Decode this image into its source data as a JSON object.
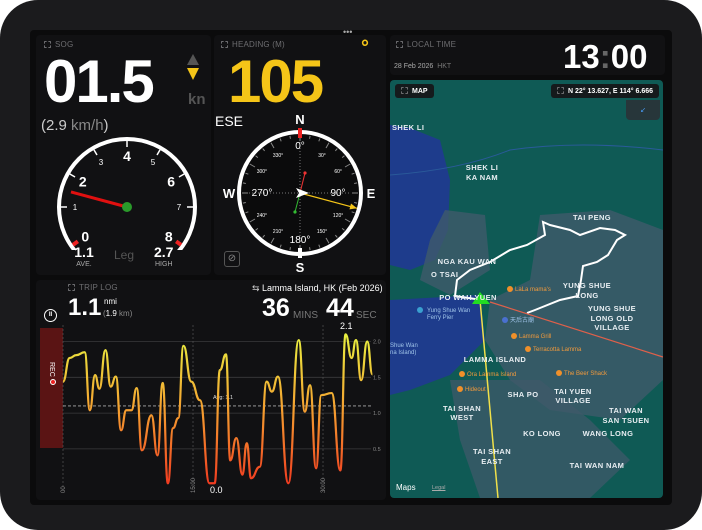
{
  "colors": {
    "accent": "#f5c518",
    "rec": "#5a1414",
    "map_bg": "#0f5a55",
    "water": "#1e3c8c",
    "track": "#ffffff"
  },
  "sog": {
    "label": "SOG",
    "value": "01.5",
    "unit": "kn",
    "kmh_value": "2.9",
    "kmh_unit": "km/h",
    "trend": "decreasing",
    "gauge": {
      "ticks": [
        "0",
        "1",
        "2",
        "3",
        "4",
        "5",
        "6",
        "7",
        "8"
      ],
      "min": 0,
      "max": 8,
      "needle_value": 1.5
    },
    "ave_value": "1.1",
    "ave_label": "AVE.",
    "leg_label": "Leg",
    "high_value": "2.7",
    "high_label": "HIGH"
  },
  "heading": {
    "label": "HEADING (M)",
    "value": "105",
    "degree_symbol": "°",
    "cardinal": "ESE",
    "menu": "•••",
    "compass": {
      "N": "N",
      "E": "E",
      "S": "S",
      "W": "W",
      "deg_major": [
        "0°",
        "90°",
        "180°",
        "270°"
      ],
      "deg_minor": [
        "30°",
        "60°",
        "120°",
        "150°",
        "210°",
        "240°",
        "300°",
        "330°"
      ],
      "heading_deg": 105
    }
  },
  "trip": {
    "label": "TRIP LOG",
    "distance": "1.1",
    "distance_unit": "nmi",
    "distance_km": "1.9",
    "distance_km_unit": "km",
    "route_name": "Lamma Island, HK (Feb 2026)",
    "mins": "36",
    "mins_label": "MINS",
    "secs": "44",
    "secs_label": "SEC",
    "rec_label": "REC",
    "max_label": "2.1",
    "min_label": "0.0"
  },
  "chart_data": {
    "type": "line",
    "title": "",
    "xlabel": "",
    "ylabel": "",
    "x_ticks": [
      "00",
      "15:00",
      "30:00"
    ],
    "y_ticks": [
      "0.5",
      "1.0",
      "1.5",
      "2.0"
    ],
    "ylim": [
      0,
      2.2
    ],
    "xlim": [
      0,
      36.7
    ],
    "avg": {
      "value": 1.1,
      "label": "Avg: 1.1"
    },
    "x": [
      0,
      0.77,
      1.54,
      2.5,
      3.1,
      3.7,
      4.2,
      4.9,
      5.5,
      6.1,
      6.7,
      7.3,
      7.9,
      8.5,
      9.1,
      10.2,
      10.9,
      11.5,
      12.1,
      12.7,
      13.3,
      13.9,
      14.8,
      15.8,
      16.9,
      17.5,
      18.1,
      18.8,
      19.3,
      20,
      20.7,
      21.2,
      21.7,
      22.7,
      23.5,
      24.1,
      24.8,
      26,
      27.2,
      27.9,
      28.5,
      29.2,
      29.8,
      31,
      32,
      32.6,
      33.3,
      33.8,
      34.4,
      35.1,
      35.7
    ],
    "y": [
      1.44,
      1.77,
      1.81,
      1.85,
      1.04,
      1.53,
      1.34,
      1.88,
      1.37,
      1.51,
      0.76,
      1.04,
      1.04,
      1.35,
      0.48,
      0.97,
      0.41,
      1.42,
      0.02,
      0.79,
      0.93,
      1.94,
      1.44,
      1.18,
      0.02,
      0.02,
      1.6,
      1.82,
      0.34,
      0.65,
      0.14,
      0.58,
      0.09,
      0.25,
      1.44,
      1.3,
      1.51,
      0.02,
      2.02,
      1.02,
      1.39,
      0.23,
      1.25,
      1.28,
      0.2,
      2.1,
      1.77,
      2.02,
      1.46,
      2.0,
      1.54
    ]
  },
  "time": {
    "label": "LOCAL TIME",
    "date": "28 Feb 2026",
    "tz": "HKT",
    "hours": "13",
    "minutes": "00"
  },
  "map": {
    "label": "MAP",
    "coords": "N 22° 13.627, E 114° 6.666",
    "attribution": "Maps",
    "legal": "Legal",
    "places": [
      "SHEK LI",
      "SHEK LI",
      "KA NAM",
      "TAI PENG",
      "NGA KAU WAN",
      "O TSAI",
      "PO WAH YUEN",
      "YUNG SHUE",
      "LONG",
      "YUNG SHUE",
      "LONG OLD",
      "VILLAGE",
      "LAMMA ISLAND",
      "SHA PO",
      "TAI YUEN",
      "VILLAGE",
      "TAI WAN",
      "SAN TSUEN",
      "TAI SHAN",
      "WEST",
      "KO LONG",
      "WANG LONG",
      "TAI SHAN",
      "EAST",
      "TAI WAN NAM"
    ],
    "pois": [
      "LaLa mama's",
      "天后古廟",
      "Lamma Grill",
      "Terracotta Lamma",
      "Ora Lamma Island",
      "The Beer Shack",
      "Hideout"
    ],
    "transit": [
      "Yung Shue Wan",
      "Ferry Pier",
      "Shue Wan",
      "na Island)"
    ]
  }
}
